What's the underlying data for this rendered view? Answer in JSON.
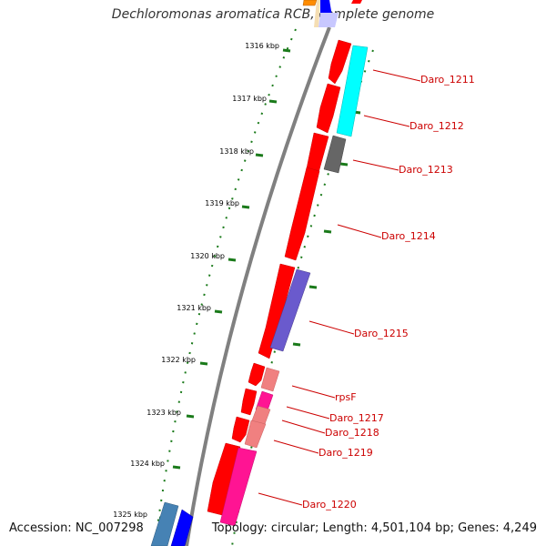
{
  "title": "Dechloromonas aromatica RCB, complete genome",
  "accession": "Accession: NC_007298",
  "topology": "Topology: circular; Length: 4,501,104 bp; Genes: 4,249",
  "colors": {
    "backbone": "#808080",
    "ticks": "#1a7a1a",
    "gene_label": "#cc0000",
    "red_gene": "#ff0000",
    "cyan_gene": "#00ffff",
    "gray_gene": "#666666",
    "purple_gene": "#6a5acd",
    "pink_gene": "#f08080",
    "magenta_gene": "#ff1493",
    "blue_gene": "#0000ff",
    "steelblue_gene": "#4682b4",
    "orange_gene": "#ff8c00"
  },
  "ruler": [
    "1316 kbp",
    "1317 kbp",
    "1318 kbp",
    "1319 kbp",
    "1320 kbp",
    "1321 kbp",
    "1322 kbp",
    "1323 kbp",
    "1324 kbp",
    "1325 kbp"
  ],
  "gene_labels": [
    "Daro_1211",
    "Daro_1212",
    "Daro_1213",
    "Daro_1214",
    "Daro_1215",
    "rpsF",
    "Daro_1217",
    "Daro_1218",
    "Daro_1219",
    "Daro_1220"
  ]
}
